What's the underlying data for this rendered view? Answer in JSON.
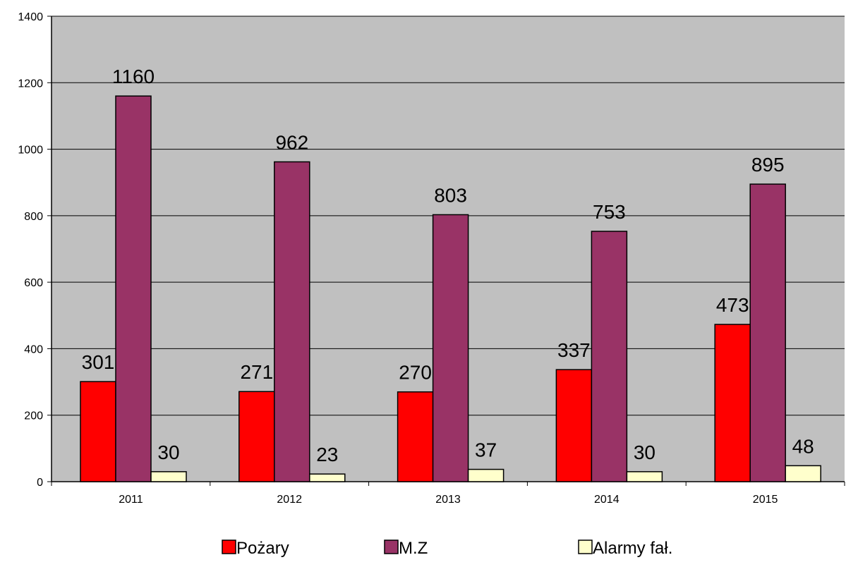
{
  "chart_data": {
    "type": "bar",
    "categories": [
      "2011",
      "2012",
      "2013",
      "2014",
      "2015"
    ],
    "series": [
      {
        "name": "Pożary",
        "values": [
          301,
          271,
          270,
          337,
          473
        ],
        "color": "#ff0000"
      },
      {
        "name": "M.Z",
        "values": [
          1160,
          962,
          803,
          753,
          895
        ],
        "color": "#993366"
      },
      {
        "name": "Alarmy fał.",
        "values": [
          30,
          23,
          37,
          30,
          48
        ],
        "color": "#ffffcc"
      }
    ],
    "ylim": [
      0,
      1400
    ],
    "yticks": [
      0,
      200,
      400,
      600,
      800,
      1000,
      1200,
      1400
    ],
    "grid": true,
    "plot_background": "#c0c0c0",
    "legend_position": "bottom",
    "data_labels": true
  }
}
